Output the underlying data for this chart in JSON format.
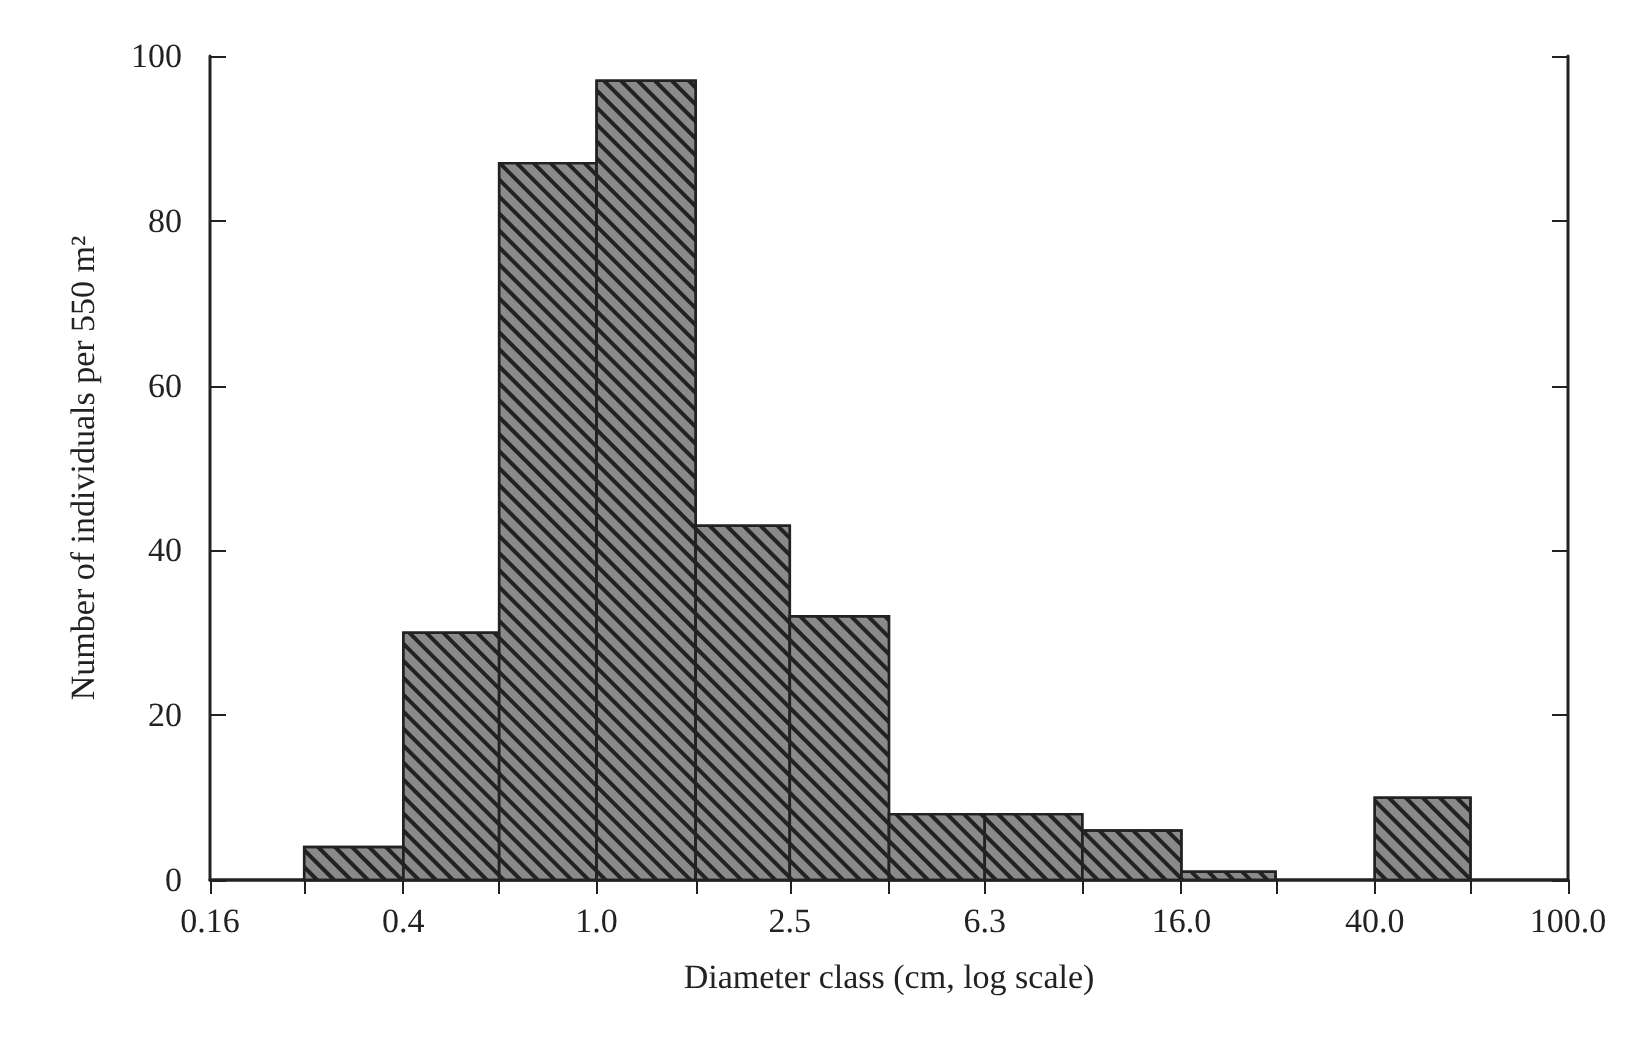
{
  "chart_data": {
    "type": "histogram",
    "xlabel": "Diameter class (cm, log scale)",
    "ylabel": "Number of individuals per 550 m²",
    "bins": [
      0.25,
      0.4,
      0.63,
      1.0,
      1.6,
      2.5,
      4.0,
      6.3,
      10,
      16,
      25,
      40,
      63
    ],
    "values": [
      4,
      30,
      87,
      97,
      43,
      32,
      8,
      8,
      6,
      1,
      0,
      10
    ],
    "color": "#8a8a8a",
    "log": "x",
    "xlim": [
      0.16,
      100
    ],
    "xticks": [
      0.16,
      {
        "value": 0.25,
        "label": null
      },
      0.4,
      {
        "value": 0.63,
        "label": null
      },
      {
        "value": 1.0,
        "label": "1.0"
      },
      {
        "value": 1.6,
        "label": null
      },
      2.5,
      {
        "value": 4.0,
        "label": null
      },
      6.3,
      {
        "value": 10,
        "label": null
      },
      {
        "value": 16,
        "label": "16.0"
      },
      {
        "value": 25,
        "label": null
      },
      {
        "value": 40,
        "label": "40.0"
      },
      {
        "value": 63,
        "label": null
      },
      {
        "value": 100,
        "label": "100.0"
      }
    ],
    "ylim": [
      0,
      100
    ],
    "yticks": [
      0,
      20,
      40,
      60,
      80,
      100
    ],
    "grid": false
  }
}
